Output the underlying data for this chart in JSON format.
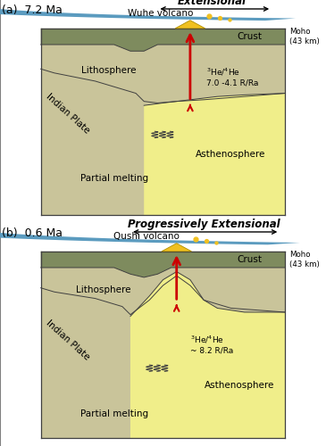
{
  "panel_a": {
    "label": "(a)  7.2 Ma",
    "extension_label": "Extensional",
    "volcano_name": "Wuhe volcano",
    "he_ratio": "$^{3}$He/$^{4}$He\n7.0 -4.1 R/Ra",
    "moho_label": "Moho\n(43 km)"
  },
  "panel_b": {
    "label": "(b)  0.6 Ma",
    "extension_label": "Progressively Extensional",
    "volcano_name": "Qushi volcano",
    "he_ratio": "$^{3}$He/$^{4}$He\n~ 8.2 R/Ra",
    "moho_label": "Moho\n(43 km)"
  },
  "colors": {
    "crust": "#7E8B5E",
    "lithosphere": "#C9C49A",
    "indian_plate": "#5B9BBF",
    "asthenosphere": "#F0EE8A",
    "background": "#FFFFFF",
    "arrow_red": "#CC0000",
    "volcano_yellow": "#F0C020",
    "outline": "#404040"
  },
  "figsize": [
    3.65,
    5.0
  ],
  "dpi": 100
}
